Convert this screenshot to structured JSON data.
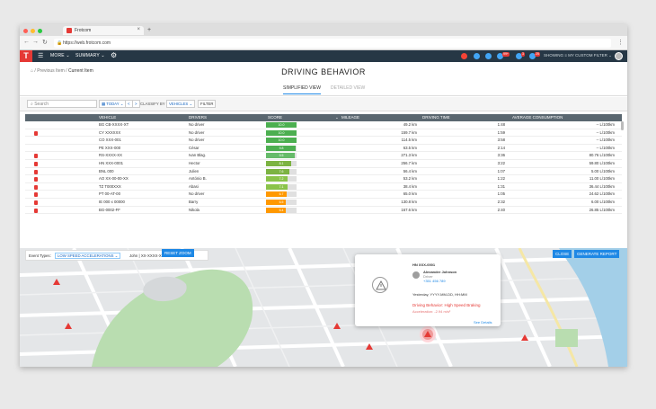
{
  "browser": {
    "tab_title": "Frotcom",
    "url": "https://web.frotcom.com"
  },
  "appbar": {
    "logo": "T",
    "more": "MORE",
    "summary": "SUMMARY",
    "showing": "SHOWING",
    "filter": "MY CUSTOM FILTER",
    "badges": [
      "99+",
      "3",
      "25"
    ]
  },
  "breadcrumb": {
    "prev": "Previous Item",
    "current": "Current Item"
  },
  "page": {
    "title": "DRIVING BEHAVIOR",
    "tabs": [
      "SIMPLIFIED VIEW",
      "DETAILED VIEW"
    ]
  },
  "filters": {
    "search_placeholder": "Search",
    "today": "TODAY",
    "nav_prev": "<",
    "nav_next": ">",
    "classify_by": "CLASSIFY BY",
    "vehicles": "VEHICLES",
    "filter": "FILTER"
  },
  "table": {
    "headers": [
      "VEHICLE",
      "DRIVERS",
      "SCORE",
      "MILEAGE",
      "DRIVING TIME",
      "AVERAGE CONSUMPTION"
    ],
    "rows": [
      {
        "pdf": false,
        "vehicle": "BG CB-XXXX-XT",
        "driver": "No driver",
        "score": "10.0",
        "scoreval": 10,
        "color": "#4caf50",
        "mileage": "49.2 km",
        "time": "1:48",
        "cons": "-- L/100km"
      },
      {
        "pdf": true,
        "vehicle": "CY XXXXXX",
        "driver": "No driver",
        "score": "10.0",
        "scoreval": 10,
        "color": "#4caf50",
        "mileage": "159.7 km",
        "time": "1:59",
        "cons": "-- L/100km"
      },
      {
        "pdf": false,
        "vehicle": "CO XXX-001",
        "driver": "No driver",
        "score": "10.0",
        "scoreval": 10,
        "color": "#4caf50",
        "mileage": "114.5 km",
        "time": "3:58",
        "cons": "-- L/100km"
      },
      {
        "pdf": false,
        "vehicle": "PE XXX-000",
        "driver": "César",
        "score": "9.8",
        "scoreval": 9.8,
        "color": "#4caf50",
        "mileage": "63.5 km",
        "time": "2:14",
        "cons": "-- L/100km"
      },
      {
        "pdf": true,
        "vehicle": "RS-XXXX-XX",
        "driver": "Ivan Blag.",
        "score": "9.5",
        "scoreval": 9.5,
        "color": "#66bb6a",
        "mileage": "271.3 km",
        "time": "3:36",
        "cons": "80.76 L/100km"
      },
      {
        "pdf": true,
        "vehicle": "HN XXX-0001",
        "driver": "Hector",
        "score": "8.1",
        "scoreval": 8.1,
        "color": "#7cb342",
        "mileage": "256.7 km",
        "time": "3:22",
        "cons": "59.80 L/100km"
      },
      {
        "pdf": true,
        "vehicle": "BNL 000",
        "driver": "Julien",
        "score": "7.6",
        "scoreval": 7.6,
        "color": "#7cb342",
        "mileage": "56.4 km",
        "time": "1:07",
        "cons": "5.00 L/100km"
      },
      {
        "pdf": true,
        "vehicle": "AO XX-00-00-XX",
        "driver": "António B.",
        "score": "7.2",
        "scoreval": 7.2,
        "color": "#8bc34a",
        "mileage": "53.2 km",
        "time": "1:22",
        "cons": "11.00 L/100km"
      },
      {
        "pdf": true,
        "vehicle": "TZ T000XXX",
        "driver": "Abasi",
        "score": "7.1",
        "scoreval": 7.1,
        "color": "#8bc34a",
        "mileage": "38.4 km",
        "time": "1:31",
        "cons": "36.44 L/100km"
      },
      {
        "pdf": true,
        "vehicle": "PT 00-AT-00",
        "driver": "No driver",
        "score": "6.7",
        "scoreval": 6.7,
        "color": "#ff9800",
        "mileage": "65.0 km",
        "time": "1:05",
        "cons": "24.62 L/100km"
      },
      {
        "pdf": true,
        "vehicle": "IE 000 x 00000",
        "driver": "Barry",
        "score": "6.5",
        "scoreval": 6.5,
        "color": "#ff9800",
        "mileage": "130.8 km",
        "time": "2:32",
        "cons": "6.00 L/100km"
      },
      {
        "pdf": true,
        "vehicle": "BG-0002-FF",
        "driver": "Nikola",
        "score": "6.4",
        "scoreval": 6.4,
        "color": "#ff9800",
        "mileage": "167.6 km",
        "time": "2:40",
        "cons": "26.85 L/100km"
      }
    ]
  },
  "map": {
    "event_types_label": "Event Types:",
    "event_type": "LOW SPEED ACCELERATIONS",
    "event_vehicle": "John | XX-XXXX-XX",
    "reset_zoom": "RESET ZOOM",
    "close": "CLOSE",
    "generate_report": "GENERATE REPORT",
    "popup": {
      "vehicle": "HN XXX-0001",
      "driver_name": "Alexander Johnson",
      "driver_role": "Driver",
      "driver_phone": "+351 456 789",
      "datetime": "Yesterday, YYYY-MM-DD, HH:MM",
      "behavior": "Driving Behavior: High Speed Braking",
      "accel": "Acceleration: -2.94 m/s²",
      "see_details": "See Details"
    }
  },
  "colors": {
    "appbar": "#263745",
    "accent": "#1e88e5",
    "danger": "#e53935"
  }
}
